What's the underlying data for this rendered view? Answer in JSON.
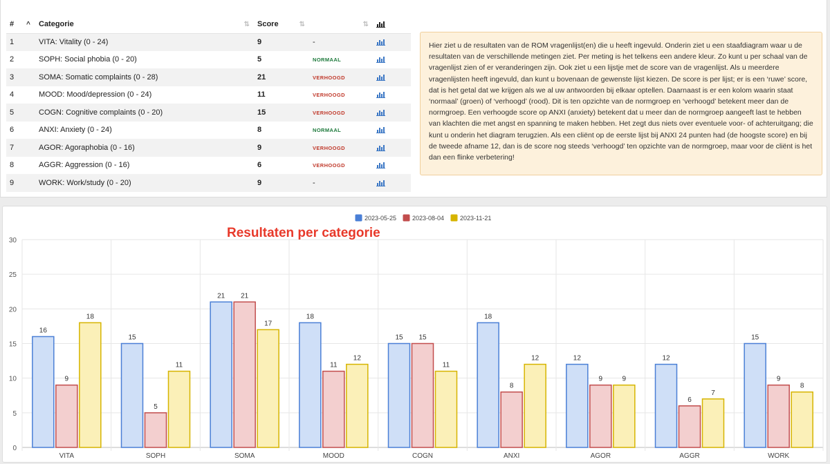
{
  "table": {
    "headers": {
      "index": "#",
      "category": "Categorie",
      "score": "Score",
      "status": "",
      "graph": ""
    },
    "rows": [
      {
        "index": "1",
        "category": "VITA: Vitality (0 - 24)",
        "score": "9",
        "status": "-",
        "status_type": "none"
      },
      {
        "index": "2",
        "category": "SOPH: Social phobia (0 - 20)",
        "score": "5",
        "status": "NORMAAL",
        "status_type": "normaal"
      },
      {
        "index": "3",
        "category": "SOMA: Somatic complaints (0 - 28)",
        "score": "21",
        "status": "VERHOOGD",
        "status_type": "verhoogd"
      },
      {
        "index": "4",
        "category": "MOOD: Mood/depression (0 - 24)",
        "score": "11",
        "status": "VERHOOGD",
        "status_type": "verhoogd"
      },
      {
        "index": "5",
        "category": "COGN: Cognitive complaints (0 - 20)",
        "score": "15",
        "status": "VERHOOGD",
        "status_type": "verhoogd"
      },
      {
        "index": "6",
        "category": "ANXI: Anxiety (0 - 24)",
        "score": "8",
        "status": "NORMAAL",
        "status_type": "normaal"
      },
      {
        "index": "7",
        "category": "AGOR: Agoraphobia (0 - 16)",
        "score": "9",
        "status": "VERHOOGD",
        "status_type": "verhoogd"
      },
      {
        "index": "8",
        "category": "AGGR: Aggression (0 - 16)",
        "score": "6",
        "status": "VERHOOGD",
        "status_type": "verhoogd"
      },
      {
        "index": "9",
        "category": "WORK: Work/study (0 - 20)",
        "score": "9",
        "status": "-",
        "status_type": "none"
      }
    ]
  },
  "info_text": "Hier ziet u de resultaten van de ROM vragenlijst(en) die u heeft ingevuld. Onderin ziet u een staafdiagram waar u de resultaten van de verschillende metingen ziet. Per meting is het telkens een andere kleur. Zo kunt u per schaal van de vragenlijst zien of er veranderingen zijn. Ook ziet u een lijstje met de score van de vragenlijst. Als u meerdere vragenlijsten heeft ingevuld, dan kunt u bovenaan de gewenste lijst kiezen. De score is per lijst; er is een ‘ruwe’ score, dat is het getal dat we krijgen als we al uw antwoorden bij elkaar optellen. Daarnaast is er een kolom waarin staat ‘normaal’ (groen) of ‘verhoogd’ (rood). Dit is ten opzichte van de normgroep en ‘verhoogd’ betekent meer dan de normgroep. Een verhoogde score op ANXI (anxiety) betekent dat u meer dan de normgroep aangeeft last te hebben van klachten die met angst en spanning te maken hebben. Het zegt dus niets over eventuele voor- of achteruitgang; die kunt u onderin het diagram terugzien. Als een cliënt op de eerste lijst bij ANXI 24 punten had (de hoogste score) en bij de tweede afname 12, dan is de score nog steeds ‘verhoogd’ ten opzichte van de normgroep, maar voor de cliënt is het dan een flinke verbetering!",
  "overlay_title": "Resultaten per categorie",
  "icons": {
    "sort": "sort-icon",
    "ascending": "chevron-up-icon",
    "graph": "bar-chart-icon"
  },
  "colors": {
    "normaal": "#1e7a3c",
    "verhoogd": "#c0392b",
    "info_bg": "#fdf1dc"
  },
  "chart_data": {
    "type": "bar",
    "title": "",
    "xlabel": "",
    "ylabel": "",
    "categories": [
      "VITA",
      "SOPH",
      "SOMA",
      "MOOD",
      "COGN",
      "ANXI",
      "AGOR",
      "AGGR",
      "WORK"
    ],
    "series": [
      {
        "name": "2023-05-25",
        "values": [
          16,
          15,
          21,
          18,
          15,
          18,
          12,
          12,
          15
        ],
        "stroke": "#4a7fd6",
        "fill": "#cfdff7"
      },
      {
        "name": "2023-08-04",
        "values": [
          9,
          5,
          21,
          11,
          15,
          8,
          9,
          6,
          9
        ],
        "stroke": "#c24d4d",
        "fill": "#f3cfcf"
      },
      {
        "name": "2023-11-21",
        "values": [
          18,
          11,
          17,
          12,
          11,
          12,
          9,
          7,
          8
        ],
        "stroke": "#d6b400",
        "fill": "#fbf0b8"
      }
    ],
    "ylim": [
      0,
      30
    ],
    "yticks": [
      0,
      5,
      10,
      15,
      20,
      25,
      30
    ],
    "grid": true,
    "legend": "top-center",
    "data_labels": true
  }
}
